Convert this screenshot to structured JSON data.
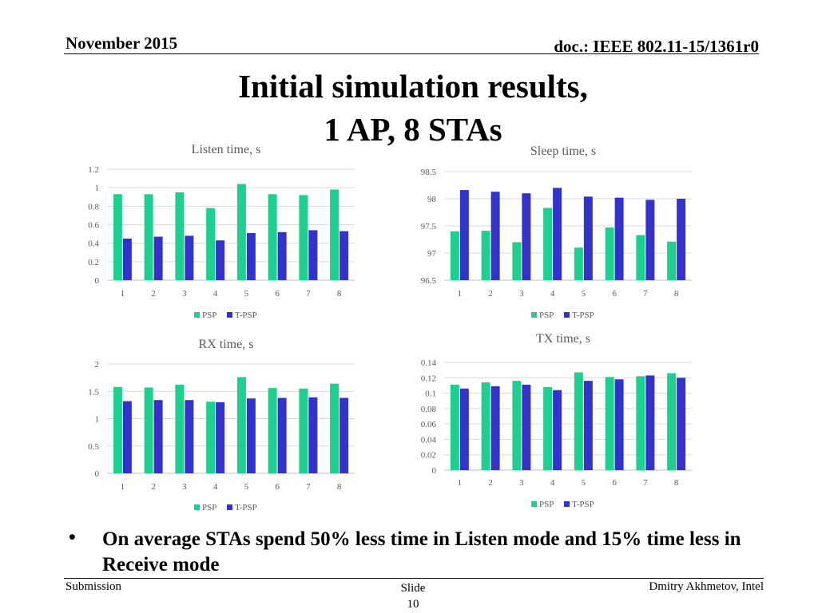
{
  "header": {
    "date": "November 2015",
    "doc": "doc.: IEEE 802.11-15/1361r0"
  },
  "title": {
    "line1": "Initial simulation results,",
    "line2": "1 AP, 8 STAs"
  },
  "chart_data": [
    {
      "type": "bar",
      "title": "Listen time, s",
      "categories": [
        "1",
        "2",
        "3",
        "4",
        "5",
        "6",
        "7",
        "8"
      ],
      "series": [
        {
          "name": "PSP",
          "values": [
            0.93,
            0.93,
            0.95,
            0.78,
            1.04,
            0.93,
            0.92,
            0.98
          ]
        },
        {
          "name": "T-PSP",
          "values": [
            0.45,
            0.47,
            0.48,
            0.43,
            0.51,
            0.52,
            0.54,
            0.53
          ]
        }
      ],
      "ylim": [
        0,
        1.2
      ],
      "yticks": [
        "0",
        "0.2",
        "0.4",
        "0.6",
        "0.8",
        "1",
        "1.2"
      ],
      "grid": true,
      "legend": "bottom"
    },
    {
      "type": "bar",
      "title": "Sleep time, s",
      "categories": [
        "1",
        "2",
        "3",
        "4",
        "5",
        "6",
        "7",
        "8"
      ],
      "series": [
        {
          "name": "PSP",
          "values": [
            97.4,
            97.41,
            97.2,
            97.83,
            97.1,
            97.47,
            97.33,
            97.21
          ]
        },
        {
          "name": "T-PSP",
          "values": [
            98.16,
            98.13,
            98.1,
            98.2,
            98.04,
            98.02,
            97.98,
            98.0
          ]
        }
      ],
      "ylim": [
        96.5,
        98.5
      ],
      "yticks": [
        "96.5",
        "97",
        "97.5",
        "98",
        "98.5"
      ],
      "grid": true,
      "legend": "bottom"
    },
    {
      "type": "bar",
      "title": "RX time, s",
      "categories": [
        "1",
        "2",
        "3",
        "4",
        "5",
        "6",
        "7",
        "8"
      ],
      "series": [
        {
          "name": "PSP",
          "values": [
            1.58,
            1.57,
            1.62,
            1.31,
            1.76,
            1.56,
            1.55,
            1.64
          ]
        },
        {
          "name": "T-PSP",
          "values": [
            1.32,
            1.34,
            1.34,
            1.3,
            1.37,
            1.38,
            1.39,
            1.38
          ]
        }
      ],
      "ylim": [
        0,
        2
      ],
      "yticks": [
        "0",
        "0.5",
        "1",
        "1.5",
        "2"
      ],
      "grid": true,
      "legend": "bottom"
    },
    {
      "type": "bar",
      "title": "TX time, s",
      "categories": [
        "1",
        "2",
        "3",
        "4",
        "5",
        "6",
        "7",
        "8"
      ],
      "series": [
        {
          "name": "PSP",
          "values": [
            0.111,
            0.114,
            0.116,
            0.108,
            0.127,
            0.121,
            0.122,
            0.126
          ]
        },
        {
          "name": "T-PSP",
          "values": [
            0.106,
            0.109,
            0.111,
            0.104,
            0.116,
            0.118,
            0.123,
            0.12
          ]
        }
      ],
      "ylim": [
        0,
        0.14
      ],
      "yticks": [
        "0",
        "0.02",
        "0.04",
        "0.06",
        "0.08",
        "0.1",
        "0.12",
        "0.14"
      ],
      "grid": true,
      "legend": "bottom"
    }
  ],
  "colors": {
    "psp": "#1fcf8f",
    "tpsp": "#3333cc",
    "grid": "#d9d9d9",
    "text": "#595959"
  },
  "bullet": {
    "symbol": "•",
    "text": "On average STAs spend 50% less time in Listen mode and 15% time less in Receive mode"
  },
  "footer": {
    "left": "Submission",
    "center_label": "Slide",
    "page": "10",
    "right": "Dmitry Akhmetov, Intel"
  }
}
